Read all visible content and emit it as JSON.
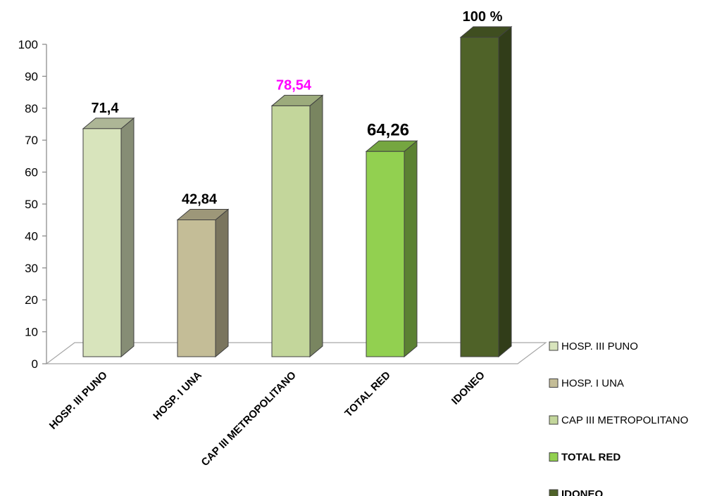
{
  "chart_data": {
    "type": "bar",
    "categories": [
      "HOSP. III PUNO",
      "HOSP. I UNA",
      "CAP III METROPOLITANO",
      "TOTAL RED",
      "IDONEO"
    ],
    "values": [
      71.4,
      42.84,
      78.54,
      64.26,
      100
    ],
    "data_labels": [
      "71,4",
      "42,84",
      "78,54",
      "64,26",
      "100 %"
    ],
    "data_label_colors": [
      "#000000",
      "#000000",
      "#ff00ff",
      "#000000",
      "#000000"
    ],
    "colors": [
      "#d8e4bc",
      "#c4bd97",
      "#c3d69b",
      "#92d050",
      "#4f6228"
    ],
    "yticks": [
      0,
      10,
      20,
      30,
      40,
      50,
      60,
      70,
      80,
      90,
      100
    ],
    "ylim": [
      0,
      100
    ],
    "grid": false,
    "title": "",
    "xlabel": "",
    "ylabel": "",
    "legend": {
      "placement": "right",
      "entries": [
        {
          "label": "HOSP. III PUNO",
          "bold": false
        },
        {
          "label": "HOSP. I UNA",
          "bold": false
        },
        {
          "label": "CAP III METROPOLITANO",
          "bold": false
        },
        {
          "label": "TOTAL RED",
          "bold": true
        },
        {
          "label": "IDONEO",
          "bold": true
        }
      ]
    }
  }
}
